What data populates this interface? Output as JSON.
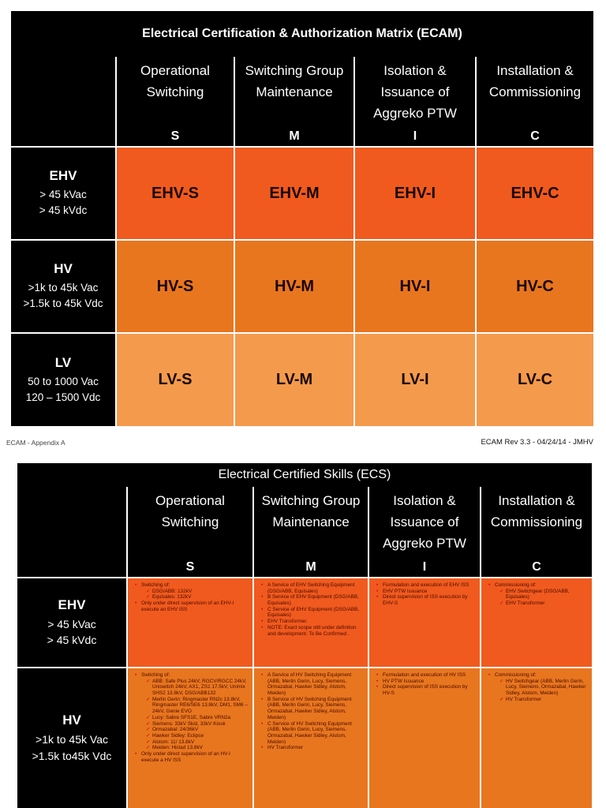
{
  "matrix": {
    "title": "Electrical Certification & Authorization Matrix (ECAM)",
    "columns": [
      {
        "name": "Operational Switching",
        "code": "S"
      },
      {
        "name": "Switching Group Maintenance",
        "code": "M"
      },
      {
        "name": "Isolation & Issuance of Aggreko PTW",
        "code": "I"
      },
      {
        "name": "Installation & Commissioning",
        "code": "C"
      }
    ],
    "rows": [
      {
        "label": "EHV",
        "sub": [
          "> 45 kVac",
          "> 45 kVdc"
        ],
        "cells": [
          "EHV-S",
          "EHV-M",
          "EHV-I",
          "EHV-C"
        ]
      },
      {
        "label": "HV",
        "sub": [
          ">1k to 45k Vac",
          ">1.5k to 45k Vdc"
        ],
        "cells": [
          "HV-S",
          "HV-M",
          "HV-I",
          "HV-C"
        ]
      },
      {
        "label": "LV",
        "sub": [
          "50 to 1000  Vac",
          "120 – 1500 Vdc"
        ],
        "cells": [
          "LV-S",
          "LV-M",
          "LV-I",
          "LV-C"
        ]
      }
    ]
  },
  "footer": {
    "left": "ECAM  - Appendix A",
    "right": "ECAM Rev 3.3  - 04/24/14 - JMHV"
  },
  "skills": {
    "title": "Electrical Certified Skills (ECS)",
    "columns": [
      {
        "name": "Operational Switching",
        "code": "S"
      },
      {
        "name": "Switching Group Maintenance",
        "code": "M"
      },
      {
        "name": "Isolation & Issuance of Aggreko PTW",
        "code": "I"
      },
      {
        "name": "Installation & Commissioning",
        "code": "C"
      }
    ],
    "rows": [
      {
        "label": "EHV",
        "sub": [
          "> 45 kVac",
          "> 45 kVdc"
        ],
        "cells": [
          [
            {
              "text": "Switching of:",
              "sub": [
                "DSG/ABB: 132kV",
                "Equisales: 132kV"
              ]
            },
            {
              "text": "Only under direct supervision of an EHV-I execute an EHV ISS"
            }
          ],
          [
            {
              "text": "A Service of EHV Switching Equipment (DSG/ABB, Equisales)"
            },
            {
              "text": "B Service of EHV Equipment (DSG/ABB, Equisales)"
            },
            {
              "text": "C Service of EHV Equipment (DSG/ABB, Equisales)"
            },
            {
              "text": "EHV Transformer."
            },
            {
              "text": "NOTE: Exact scope still under definition and development. To Be Confirmed ."
            }
          ],
          [
            {
              "text": "Formulation and execution of EHV ISS"
            },
            {
              "text": "EHV PTW Issuance"
            },
            {
              "text": "Direct supervision  of ISS execution by  EHV-S"
            }
          ],
          [
            {
              "text": "Commissioning of:",
              "sub": [
                "EHV Switchgear (DSG/ABB, Equisales)",
                "EHV  Transformer"
              ]
            }
          ]
        ]
      },
      {
        "label": "HV",
        "sub": [
          ">1k to 45k Vac",
          ">1.5k to45k Vdc"
        ],
        "cells": [
          [
            {
              "text": "Switching  of:",
              "sub": [
                "ABB: Safe Plus 24kV, RGCV/RGCC 24kV, Uniswitch 24kV, AX1, ZS1 17.5kV, Unimix SHS2 13.8kV, DSG/ABB132",
                "Merlin Gerin: Ringmaster RN2c 13.8kV, Ringmaster RE6/SE6 13.8kV, DM1, SM6 – 24kV, Genie EVO",
                "Lucy: Sabre SFS1E, Sabre VRN2a",
                "Siemens: 33kV Skid, 33kV Kiosk",
                "Ormazabal: 24/36kV",
                "Hawker Sidley: Eclipse",
                "Alstom: 11/ 13.8kV",
                "Meiden: Hiclad 13.8kV"
              ]
            },
            {
              "text": "Only under direct supervision of an HV-I  execute a HV ISS"
            }
          ],
          [
            {
              "text": "A Service of HV Switching Equipment (ABB, Merlin Gerin, Lucy, Siemens, Ormazabal, Hawker Sidley, Alstom, Meiden)"
            },
            {
              "text": "B Service of HV Switching Equipment (ABB, Merlin Gerin, Lucy, Siemens, Ormazabal, Hawker Sidley, Alstom, Meiden)"
            },
            {
              "text": "C Service of HV Switching Equipment (ABB, Merlin Gerin, Lucy, Siemens, Ormazabal, Hawker Sidley, Alstom, Meiden)"
            },
            {
              "text": "HV Transformer"
            }
          ],
          [
            {
              "text": "Formulation and execution of HV ISS"
            },
            {
              "text": "HV PTW Issuance"
            },
            {
              "text": "Direct supervision of ISS execution by HV-S"
            }
          ],
          [
            {
              "text": "Commissioning of:",
              "sub": [
                "HV Switchgear (ABB, Merlin Gerin, Lucy, Siemens, Ormazabal, Hawker Sidley, Alstom, Meiden)",
                "HV  Transformer"
              ]
            }
          ]
        ]
      }
    ]
  }
}
